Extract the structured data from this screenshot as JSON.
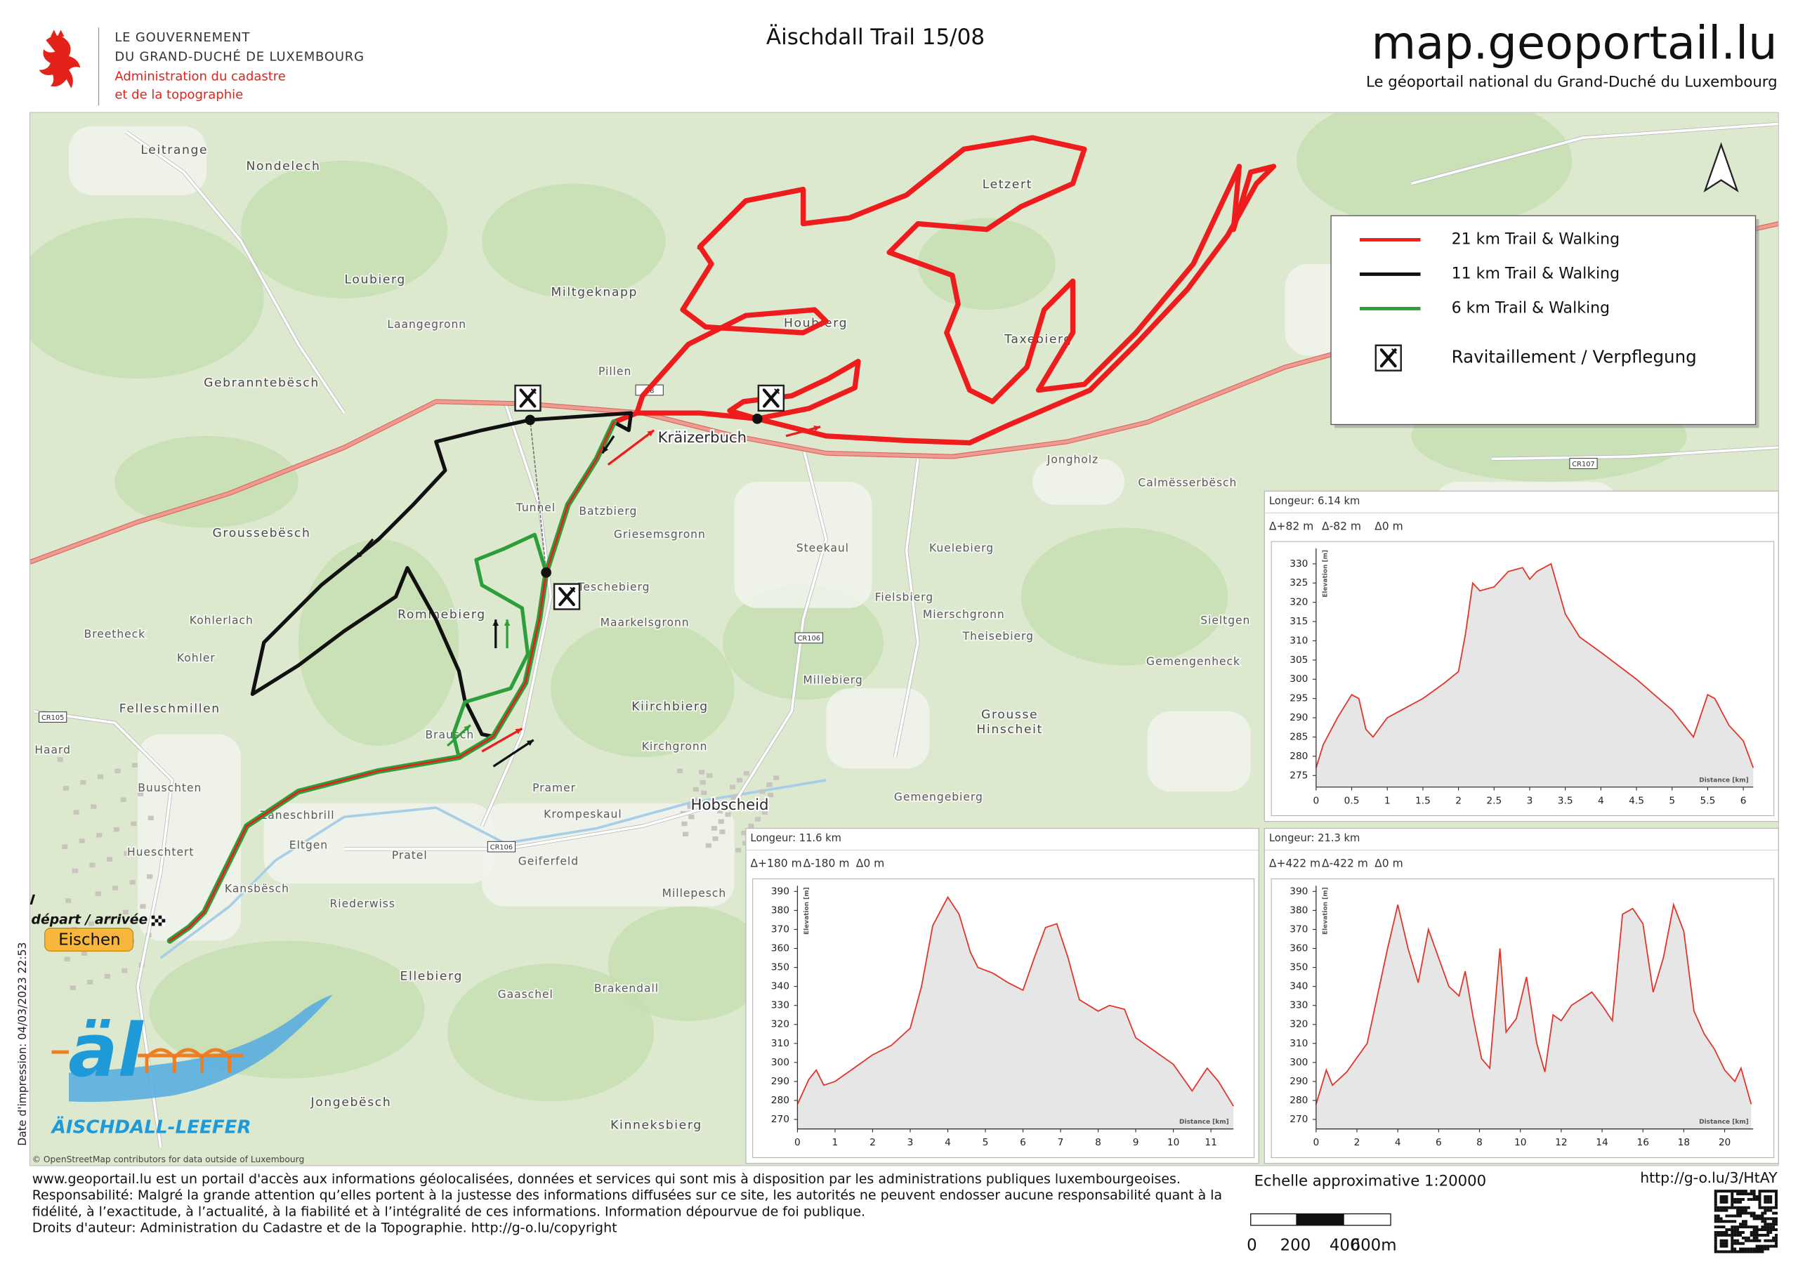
{
  "header": {
    "gov_line1": "LE GOUVERNEMENT",
    "gov_line2": "DU GRAND-DUCHÉ DE LUXEMBOURG",
    "admin_line1": "Administration du cadastre",
    "admin_line2": "et de la topographie",
    "title": "Äischdall Trail 15/08",
    "site": "map.geoportail.lu",
    "site_subtitle": "Le géoportail national du Grand-Duché du Luxembourg"
  },
  "map": {
    "places": [
      "Leitrange",
      "Nondelech",
      "Loubierg",
      "Miltgeknapp",
      "Gebranntebësch",
      "Groussebësch",
      "Letzert",
      "Houbierg",
      "Taxebierg",
      "Rommebierg",
      "Kiirchbierg",
      "Felleschmillen",
      "Grousse",
      "Hinscheit",
      "Ellebierg",
      "Jongebësch",
      "Kinneksbierg",
      "Zaneschbrill",
      "Eltgen",
      "Pratel",
      "Kansbësch",
      "Riederwiss",
      "Gaaschel",
      "Brakendall",
      "Steekaul",
      "Kuelebierg",
      "Mierschgronn",
      "Theisebierg",
      "Gemengenheck",
      "Fielsbierg",
      "Millebierg",
      "Krompeskaul",
      "Geiferfeld",
      "Pramer",
      "Teschebierg",
      "Maarkelsgronn",
      "Kohler",
      "Kohlerlach",
      "Breetheck",
      "Haard",
      "Buuschten",
      "Hueschtert",
      "Jongholz",
      "Calmësserbësch",
      "Sieltgen",
      "Laangegronn",
      "Tunnel",
      "Batzbierg",
      "Griesemsgronn",
      "Pillen",
      "Brausch",
      "Kirchgronn",
      "Millepesch",
      "Gemengebierg"
    ],
    "towns": [
      "Kräizerbuch",
      "Hobscheid"
    ],
    "roads": [
      "N8",
      "CR105",
      "CR106",
      "CR106",
      "CR107"
    ],
    "legend": {
      "items": [
        {
          "label": "21 km Trail & Walking",
          "color": "#ee1c1c"
        },
        {
          "label": "11 km Trail & Walking",
          "color": "#111111"
        },
        {
          "label": "6 km Trail & Walking",
          "color": "#2e9e3a"
        }
      ],
      "supply": "Ravitaillement / Verpflegung"
    },
    "start_line1": "Start / Ziel",
    "start_line2": "départ / arrivée",
    "start_town": "Eischen",
    "attribution": "© OpenStreetMap contributors for data outside of Luxembourg",
    "print_date": "Date d'impression: 04/03/2023 22:53",
    "logo_mark": "äl",
    "logo_name": "ÄISCHDALL-LEEFER"
  },
  "profiles": [
    {
      "title": "Longeur: 6.14 km",
      "stats": [
        "Δ+82 m",
        "Δ-82 m",
        "Δ0 m"
      ],
      "y_label": "Elevation [m]",
      "x_label": "Distance [km]",
      "color": "#e0352b",
      "xlim": [
        0,
        6.14
      ],
      "ylim": [
        272,
        334
      ],
      "xticks": [
        0,
        0.5,
        1,
        1.5,
        2,
        2.5,
        3,
        3.5,
        4,
        4.5,
        5,
        5.5,
        6
      ],
      "yticks": [
        275,
        280,
        285,
        290,
        295,
        300,
        305,
        310,
        315,
        320,
        325,
        330
      ],
      "x": [
        0,
        0.1,
        0.3,
        0.5,
        0.6,
        0.7,
        0.8,
        1.0,
        1.2,
        1.5,
        1.8,
        2.0,
        2.1,
        2.2,
        2.3,
        2.5,
        2.7,
        2.9,
        3.0,
        3.1,
        3.3,
        3.5,
        3.7,
        4.0,
        4.5,
        5.0,
        5.3,
        5.5,
        5.6,
        5.8,
        6.0,
        6.14
      ],
      "values": [
        277,
        283,
        290,
        296,
        295,
        287,
        285,
        290,
        292,
        295,
        299,
        302,
        312,
        325,
        323,
        324,
        328,
        329,
        326,
        328,
        330,
        317,
        311,
        307,
        300,
        292,
        285,
        296,
        295,
        288,
        284,
        277
      ]
    },
    {
      "title": "Longeur: 11.6 km",
      "stats": [
        "Δ+180 m",
        "Δ-180 m",
        "Δ0 m"
      ],
      "y_label": "Elevation [m]",
      "x_label": "Distance [km]",
      "color": "#e0352b",
      "xlim": [
        0,
        11.6
      ],
      "ylim": [
        265,
        393
      ],
      "xticks": [
        0,
        1,
        2,
        3,
        4,
        5,
        6,
        7,
        8,
        9,
        10,
        11
      ],
      "yticks": [
        270,
        280,
        290,
        300,
        310,
        320,
        330,
        340,
        350,
        360,
        370,
        380,
        390
      ],
      "x": [
        0,
        0.3,
        0.5,
        0.7,
        1.0,
        1.5,
        2,
        2.5,
        3,
        3.3,
        3.6,
        4.0,
        4.3,
        4.6,
        4.8,
        5.2,
        5.6,
        6.0,
        6.3,
        6.6,
        6.9,
        7.2,
        7.5,
        8.0,
        8.3,
        8.7,
        9.0,
        9.5,
        10.0,
        10.5,
        10.9,
        11.2,
        11.6
      ],
      "values": [
        278,
        291,
        296,
        288,
        290,
        297,
        304,
        309,
        318,
        340,
        372,
        387,
        378,
        358,
        350,
        347,
        342,
        338,
        355,
        371,
        373,
        355,
        333,
        327,
        330,
        328,
        313,
        306,
        299,
        285,
        297,
        290,
        277
      ]
    },
    {
      "title": "Longeur: 21.3 km",
      "stats": [
        "Δ+422 m",
        "Δ-422 m",
        "Δ0 m"
      ],
      "y_label": "Elevation [m]",
      "x_label": "Distance [km]",
      "color": "#e0352b",
      "xlim": [
        0,
        21.4
      ],
      "ylim": [
        265,
        393
      ],
      "xticks": [
        0,
        2,
        4,
        6,
        8,
        10,
        12,
        14,
        16,
        18,
        20
      ],
      "yticks": [
        270,
        280,
        290,
        300,
        310,
        320,
        330,
        340,
        350,
        360,
        370,
        380,
        390
      ],
      "x": [
        0,
        0.5,
        0.8,
        1.5,
        2.5,
        3.5,
        4,
        4.5,
        5.0,
        5.5,
        6,
        6.5,
        7,
        7.3,
        7.7,
        8.1,
        8.5,
        9.0,
        9.3,
        9.8,
        10.3,
        10.8,
        11.2,
        11.6,
        12,
        12.5,
        13.5,
        14,
        14.5,
        15,
        15.5,
        16.0,
        16.5,
        17,
        17.5,
        18,
        18.5,
        19,
        19.5,
        20,
        20.5,
        20.8,
        21.3
      ],
      "values": [
        278,
        296,
        288,
        295,
        310,
        360,
        383,
        360,
        342,
        370,
        355,
        340,
        335,
        348,
        323,
        302,
        297,
        360,
        316,
        323,
        345,
        310,
        295,
        325,
        322,
        330,
        337,
        330,
        322,
        378,
        381,
        373,
        337,
        355,
        383,
        369,
        327,
        315,
        307,
        296,
        290,
        297,
        278
      ]
    }
  ],
  "footer": {
    "disclaimer": [
      "www.geoportail.lu est un portail d'accès aux informations géolocalisées, données et services qui sont mis à disposition par les administrations publiques luxembourgeoises.",
      "Responsabilité: Malgré la grande attention qu’elles portent à la justesse des informations diffusées sur ce site, les autorités ne peuvent endosser aucune responsabilité quant à la",
      "fidélité, à l’exactitude, à l’actualité, à la fiabilité et à l’intégralité de ces informations. Information dépourvue de foi publique.",
      "Droits d'auteur: Administration du Cadastre et de la Topographie. http://g-o.lu/copyright"
    ],
    "scale_text": "Echelle approximative 1:20000",
    "scale_labels": [
      "0",
      "200",
      "400",
      "600m"
    ],
    "short_url": "http://g-o.lu/3/HtAY"
  }
}
